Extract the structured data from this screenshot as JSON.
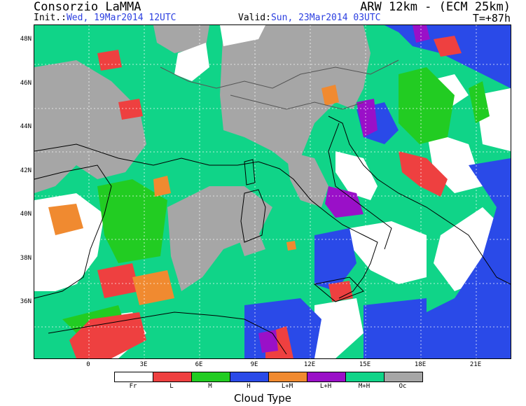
{
  "header": {
    "title_left": "Consorzio LaMMA",
    "title_right": "ARW 12km - (ECM 25km)",
    "init_label": "Init.:",
    "init_value": "Wed, 19Mar2014 12UTC",
    "valid_label": "Valid:",
    "valid_value": "Sun, 23Mar2014 03UTC",
    "time_step": "T=+87h"
  },
  "axes": {
    "lat_ticks": [
      "48N",
      "46N",
      "44N",
      "42N",
      "40N",
      "38N",
      "36N"
    ],
    "lon_ticks": [
      "0",
      "3E",
      "6E",
      "9E",
      "12E",
      "15E",
      "18E",
      "21E"
    ]
  },
  "legend": {
    "title": "Cloud Type",
    "items": [
      {
        "label": "Fr",
        "color": "#ffffff"
      },
      {
        "label": "L",
        "color": "#ee4040"
      },
      {
        "label": "M",
        "color": "#22cc22"
      },
      {
        "label": "H",
        "color": "#2a4ae8"
      },
      {
        "label": "L+M",
        "color": "#f08a30"
      },
      {
        "label": "L+H",
        "color": "#9a10c8"
      },
      {
        "label": "M+H",
        "color": "#10d488"
      },
      {
        "label": "Oc",
        "color": "#a6a6a6"
      }
    ]
  }
}
